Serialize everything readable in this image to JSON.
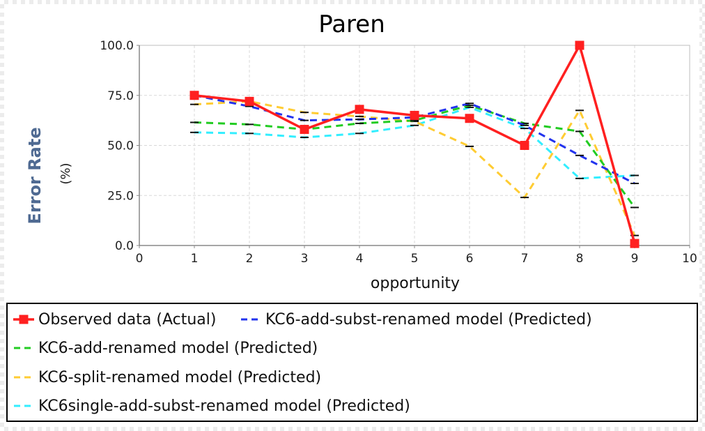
{
  "chart_data": {
    "type": "line",
    "title": "Paren",
    "xlabel": "opportunity",
    "ylabel": "Error Rate",
    "ylabel_unit": "(%)",
    "xlim": [
      0,
      10
    ],
    "ylim": [
      0,
      100
    ],
    "x_ticks": [
      "0",
      "1",
      "2",
      "3",
      "4",
      "5",
      "6",
      "7",
      "8",
      "9",
      "10"
    ],
    "y_ticks": [
      "0.0",
      "25.0",
      "50.0",
      "75.0",
      "100.0"
    ],
    "grid": true,
    "legend_position": "bottom",
    "x": [
      1,
      2,
      3,
      4,
      5,
      6,
      7,
      8,
      9
    ],
    "series": [
      {
        "name": "Observed data (Actual)",
        "color": "#ff2020",
        "style": "solid",
        "marker": "square",
        "values": [
          75,
          72,
          58,
          68,
          65,
          63.5,
          50,
          100,
          1
        ]
      },
      {
        "name": "KC6-add-subst-renamed model (Predicted)",
        "color": "#2233ee",
        "style": "dashed",
        "marker": "none",
        "values": [
          75,
          69.5,
          62.5,
          63,
          64,
          71,
          60,
          45,
          31
        ]
      },
      {
        "name": "KC6-add-renamed model (Predicted)",
        "color": "#22cc22",
        "style": "dashed",
        "marker": "none",
        "values": [
          61.5,
          60.5,
          58,
          61,
          62.5,
          70,
          61,
          57,
          19
        ]
      },
      {
        "name": "KC6-split-renamed model (Predicted)",
        "color": "#ffcc33",
        "style": "dashed",
        "marker": "none",
        "values": [
          70.5,
          72,
          66.5,
          64.5,
          62,
          49.5,
          24,
          67.5,
          5
        ]
      },
      {
        "name": "KC6single-add-subst-renamed model (Predicted)",
        "color": "#33eeff",
        "style": "dashed",
        "marker": "none",
        "values": [
          56.5,
          56,
          54,
          56,
          60,
          69,
          58.5,
          33.5,
          35
        ]
      }
    ]
  }
}
